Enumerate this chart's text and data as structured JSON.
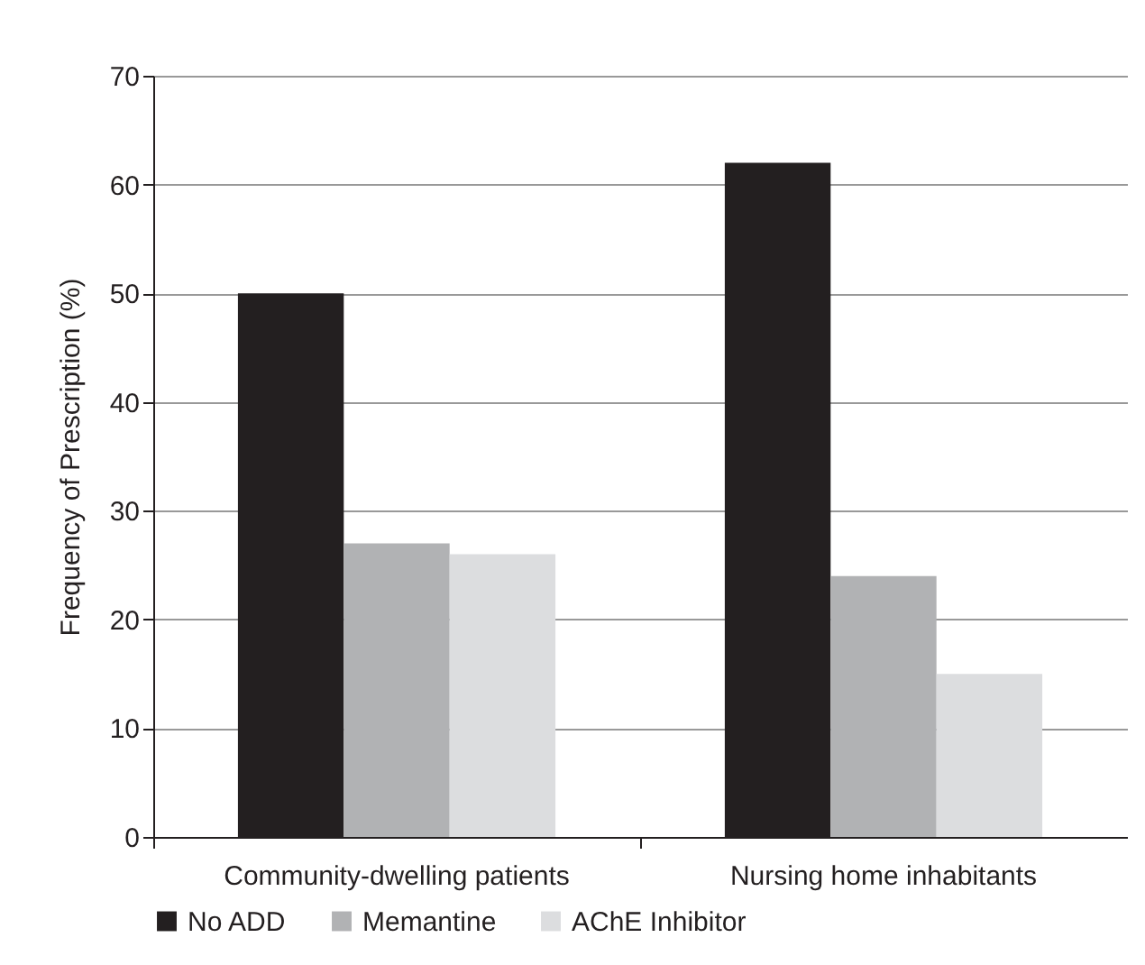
{
  "chart_data": {
    "type": "bar",
    "ylabel": "Frequency of Prescription (%)",
    "categories": [
      "Community-dwelling patients",
      "Nursing home inhabitants"
    ],
    "series": [
      {
        "name": "No ADD",
        "color": "#231f20",
        "values": [
          50,
          62
        ]
      },
      {
        "name": "Memantine",
        "color": "#b1b2b4",
        "values": [
          27,
          24
        ]
      },
      {
        "name": "AChE Inhibitor",
        "color": "#dcdddf",
        "values": [
          26,
          15
        ]
      }
    ],
    "ylim": [
      0,
      70
    ],
    "yticks": [
      0,
      10,
      20,
      30,
      40,
      50,
      60,
      70
    ],
    "grid": "y",
    "legend": "bottom"
  }
}
